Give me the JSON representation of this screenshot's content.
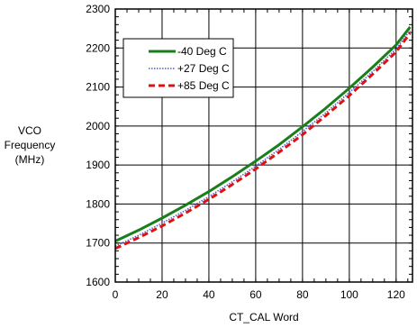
{
  "chart_data": {
    "type": "line",
    "title": "",
    "xlabel": "CT_CAL Word",
    "ylabel_lines": [
      "VCO",
      "Frequency",
      "(MHz)"
    ],
    "xlim": [
      0,
      127
    ],
    "ylim": [
      1600,
      2300
    ],
    "x_ticks": [
      0,
      20,
      40,
      60,
      80,
      100,
      120
    ],
    "y_ticks": [
      1600,
      1700,
      1800,
      1900,
      2000,
      2100,
      2200,
      2300
    ],
    "grid": true,
    "legend_position": "top-left",
    "series": [
      {
        "name": "-40 Deg C",
        "color": "#1a7f1a",
        "style": "solid",
        "x": [
          0,
          10,
          20,
          30,
          40,
          50,
          60,
          70,
          80,
          90,
          100,
          110,
          120,
          126
        ],
        "y": [
          1705,
          1733,
          1764,
          1797,
          1832,
          1870,
          1910,
          1952,
          1998,
          2046,
          2097,
          2151,
          2208,
          2254
        ]
      },
      {
        "name": "+27 Deg C",
        "color": "#4a5ccc",
        "style": "dotted",
        "x": [
          0,
          10,
          20,
          30,
          40,
          50,
          60,
          70,
          80,
          90,
          100,
          110,
          120,
          126
        ],
        "y": [
          1692,
          1720,
          1751,
          1784,
          1819,
          1857,
          1897,
          1940,
          1986,
          2034,
          2086,
          2140,
          2198,
          2245
        ]
      },
      {
        "name": "+85 Deg C",
        "color": "#e01010",
        "style": "dashed",
        "x": [
          0,
          10,
          20,
          30,
          40,
          50,
          60,
          70,
          80,
          90,
          100,
          110,
          120,
          126
        ],
        "y": [
          1686,
          1714,
          1744,
          1777,
          1812,
          1850,
          1890,
          1933,
          1978,
          2027,
          2078,
          2133,
          2190,
          2238
        ]
      }
    ]
  }
}
